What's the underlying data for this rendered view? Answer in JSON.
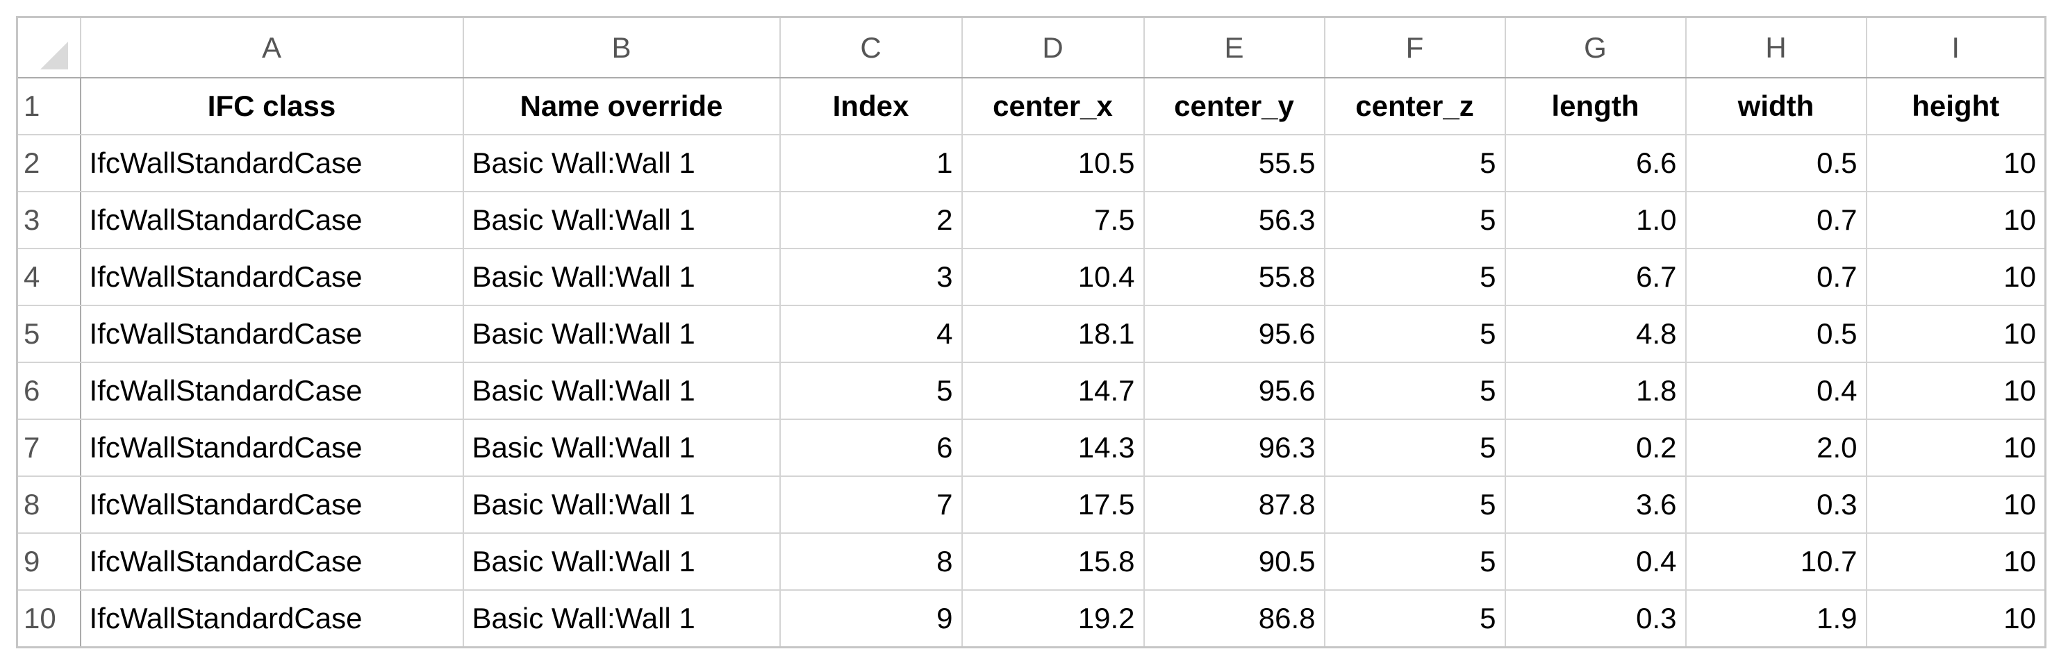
{
  "column_letters": [
    "A",
    "B",
    "C",
    "D",
    "E",
    "F",
    "G",
    "H",
    "I"
  ],
  "row_numbers": [
    "1",
    "2",
    "3",
    "4",
    "5",
    "6",
    "7",
    "8",
    "9",
    "10"
  ],
  "header": [
    "IFC class",
    "Name override",
    "Index",
    "center_x",
    "center_y",
    "center_z",
    "length",
    "width",
    "height"
  ],
  "rows": [
    [
      "IfcWallStandardCase",
      "Basic Wall:Wall 1",
      "1",
      "10.5",
      "55.5",
      "5",
      "6.6",
      "0.5",
      "10"
    ],
    [
      "IfcWallStandardCase",
      "Basic Wall:Wall 1",
      "2",
      "7.5",
      "56.3",
      "5",
      "1.0",
      "0.7",
      "10"
    ],
    [
      "IfcWallStandardCase",
      "Basic Wall:Wall 1",
      "3",
      "10.4",
      "55.8",
      "5",
      "6.7",
      "0.7",
      "10"
    ],
    [
      "IfcWallStandardCase",
      "Basic Wall:Wall 1",
      "4",
      "18.1",
      "95.6",
      "5",
      "4.8",
      "0.5",
      "10"
    ],
    [
      "IfcWallStandardCase",
      "Basic Wall:Wall 1",
      "5",
      "14.7",
      "95.6",
      "5",
      "1.8",
      "0.4",
      "10"
    ],
    [
      "IfcWallStandardCase",
      "Basic Wall:Wall 1",
      "6",
      "14.3",
      "96.3",
      "5",
      "0.2",
      "2.0",
      "10"
    ],
    [
      "IfcWallStandardCase",
      "Basic Wall:Wall 1",
      "7",
      "17.5",
      "87.8",
      "5",
      "3.6",
      "0.3",
      "10"
    ],
    [
      "IfcWallStandardCase",
      "Basic Wall:Wall 1",
      "8",
      "15.8",
      "90.5",
      "5",
      "0.4",
      "10.7",
      "10"
    ],
    [
      "IfcWallStandardCase",
      "Basic Wall:Wall 1",
      "9",
      "19.2",
      "86.8",
      "5",
      "0.3",
      "1.9",
      "10"
    ]
  ]
}
